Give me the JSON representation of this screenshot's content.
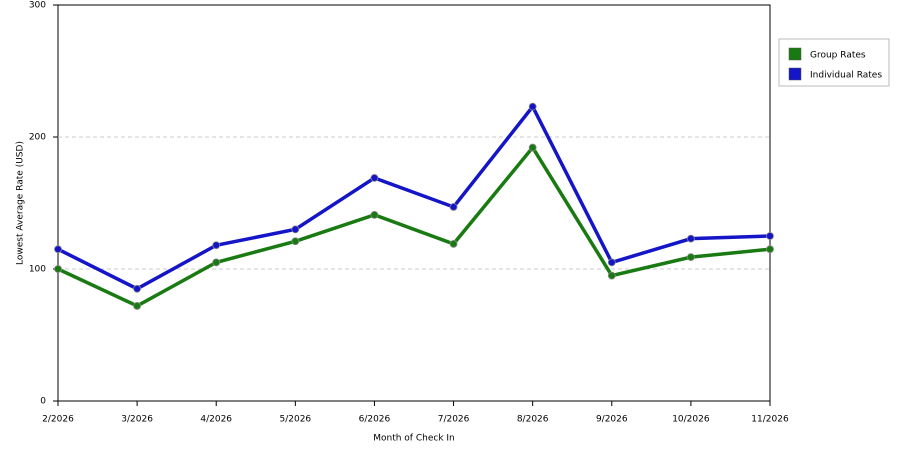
{
  "chart_data": {
    "type": "line",
    "x_label": "Month of Check In",
    "y_label": "Lowest Average Rate (USD)",
    "categories": [
      "2/2026",
      "3/2026",
      "4/2026",
      "5/2026",
      "6/2026",
      "7/2026",
      "8/2026",
      "9/2026",
      "10/2026",
      "11/2026"
    ],
    "series": [
      {
        "name": "Group Rates",
        "color": "#1a7a12",
        "values": [
          100,
          72,
          105,
          121,
          141,
          119,
          192,
          95,
          109,
          115
        ]
      },
      {
        "name": "Individual Rates",
        "color": "#1515c8",
        "values": [
          115,
          85,
          118,
          130,
          169,
          147,
          223,
          105,
          123,
          125
        ]
      }
    ],
    "ylim": [
      0,
      300
    ],
    "yticks": [
      0,
      100,
      200,
      300
    ],
    "grid": true,
    "legend": "right"
  }
}
